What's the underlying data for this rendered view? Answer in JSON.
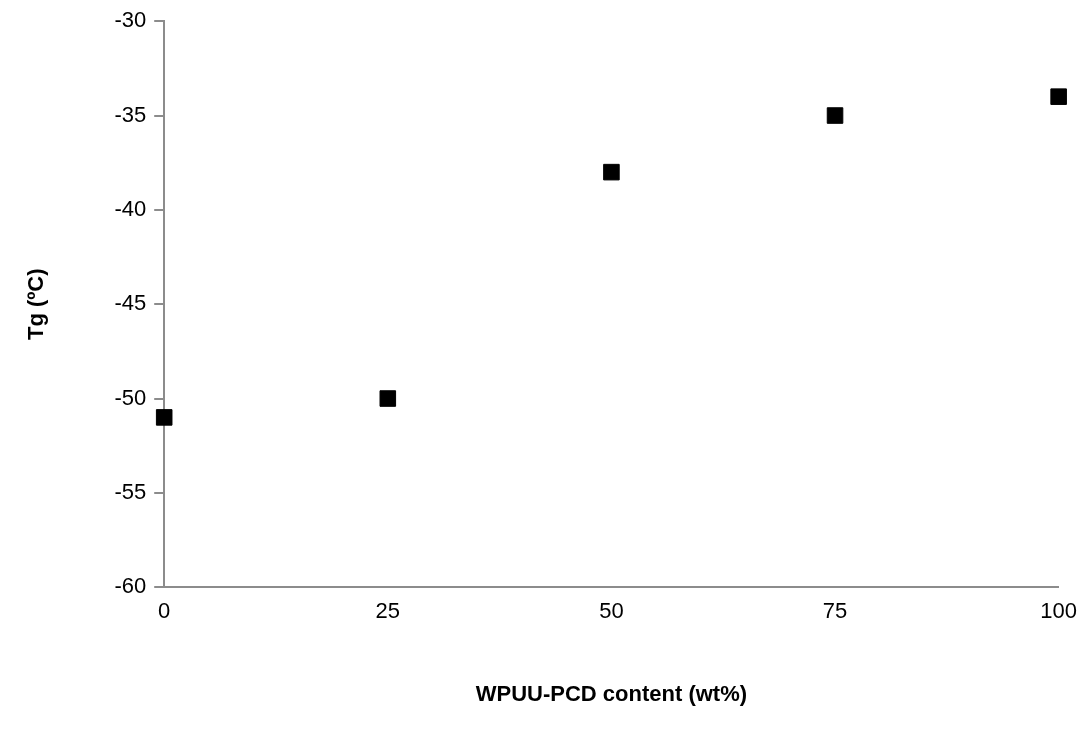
{
  "chart_data": {
    "type": "scatter",
    "xlabel": "WPUU-PCD content (wt%)",
    "ylabel": "Tg (ºC)",
    "x": [
      0,
      25,
      50,
      75,
      100
    ],
    "series": [
      {
        "color": "#000000",
        "values": [
          -51,
          -50,
          -38,
          -35,
          -34
        ]
      }
    ],
    "xlim": [
      0,
      100
    ],
    "xticks": [
      0,
      25,
      50,
      75,
      100
    ],
    "ylim": [
      -60,
      -30
    ],
    "yticks": [
      -60,
      -55,
      -50,
      -45,
      -40,
      -35,
      -30
    ],
    "marker": "square",
    "grid": false,
    "legend": false
  }
}
